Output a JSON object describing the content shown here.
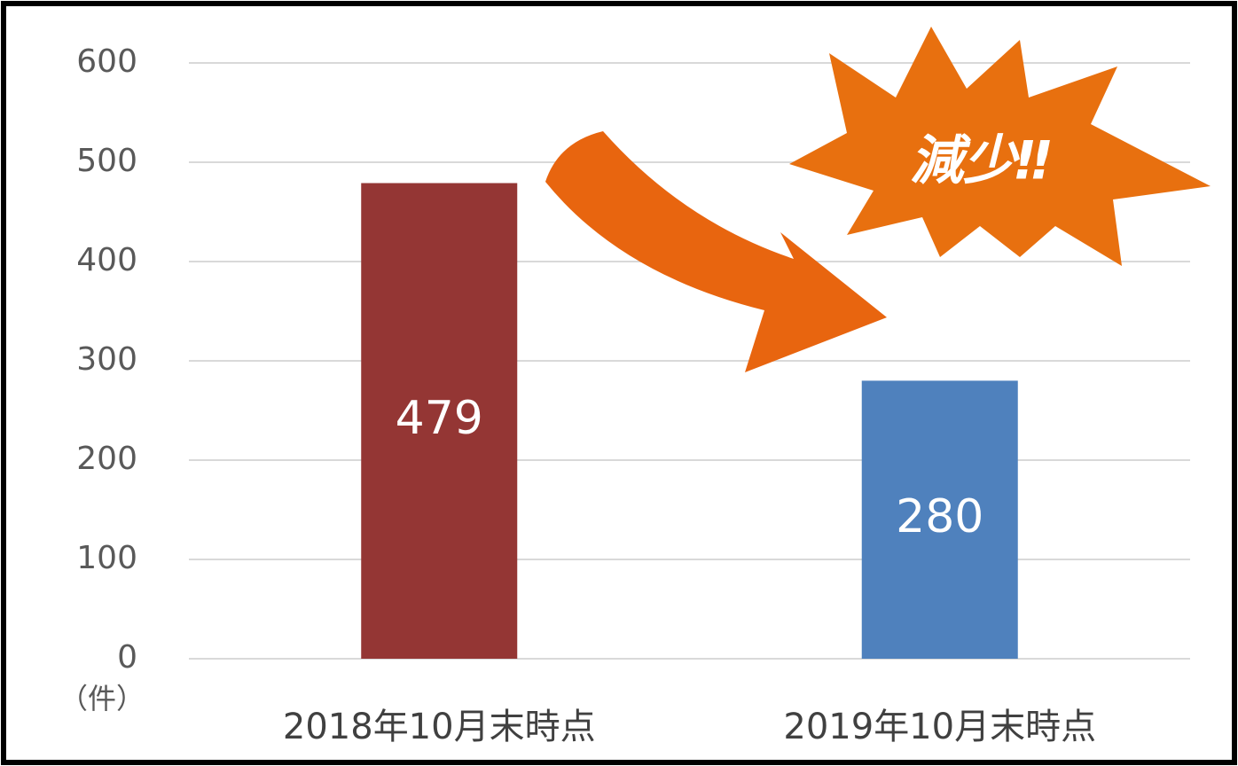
{
  "chart_data": {
    "type": "bar",
    "categories": [
      "2018年10月末時点",
      "2019年10月末時点"
    ],
    "values": [
      479,
      280
    ],
    "colors": [
      "#943634",
      "#4f81bd"
    ],
    "ylim": [
      0,
      600
    ],
    "yticks": [
      0,
      100,
      200,
      300,
      400,
      500,
      600
    ],
    "grid": true,
    "unit_label": "（件）",
    "annotation": "減少‼"
  }
}
